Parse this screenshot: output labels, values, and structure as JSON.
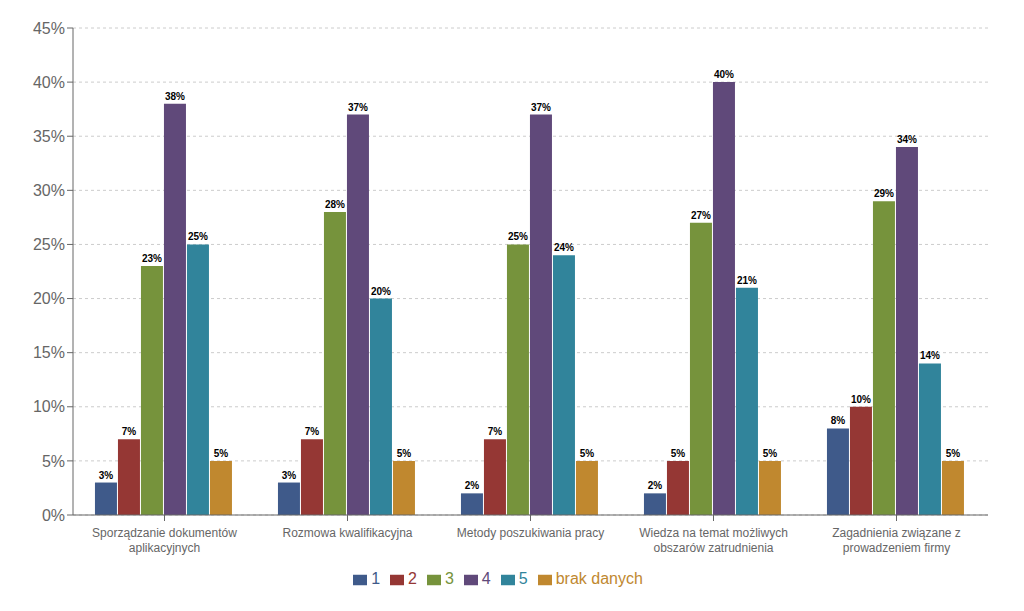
{
  "chart_data": {
    "type": "bar",
    "categories": [
      "Sporządzanie dokumentów\naplikacyjnych",
      "Rozmowa kwalifikacyjna",
      "Metody poszukiwania pracy",
      "Wiedza na temat możliwych\nobszarów zatrudnienia",
      "Zagadnienia związane z\nprowadzeniem firmy"
    ],
    "series": [
      {
        "name": "1",
        "color": "#3F5A8A",
        "values": [
          3,
          3,
          2,
          2,
          8
        ],
        "value_labels": [
          "3%",
          "3%",
          "2%",
          "2%",
          "8%"
        ]
      },
      {
        "name": "2",
        "color": "#953734",
        "values": [
          7,
          7,
          7,
          5,
          10
        ],
        "value_labels": [
          "7%",
          "7%",
          "7%",
          "5%",
          "10%"
        ]
      },
      {
        "name": "3",
        "color": "#76933C",
        "values": [
          23,
          28,
          25,
          27,
          29
        ],
        "value_labels": [
          "23%",
          "28%",
          "25%",
          "27%",
          "29%"
        ]
      },
      {
        "name": "4",
        "color": "#60497A",
        "values": [
          38,
          37,
          37,
          40,
          34
        ],
        "value_labels": [
          "38%",
          "37%",
          "37%",
          "40%",
          "34%"
        ]
      },
      {
        "name": "5",
        "color": "#31849B",
        "values": [
          25,
          20,
          24,
          21,
          14
        ],
        "value_labels": [
          "25%",
          "20%",
          "24%",
          "21%",
          "14%"
        ]
      },
      {
        "name": "brak danych",
        "color": "#C0882F",
        "values": [
          5,
          5,
          5,
          5,
          5
        ],
        "value_labels": [
          "5%",
          "5%",
          "5%",
          "5%",
          "5%"
        ]
      }
    ],
    "ylim": [
      0,
      45
    ],
    "yticks": [
      {
        "value": 0,
        "label": "0%"
      },
      {
        "value": 5,
        "label": "5%"
      },
      {
        "value": 10,
        "label": "10%"
      },
      {
        "value": 15,
        "label": "15%"
      },
      {
        "value": 20,
        "label": "20%"
      },
      {
        "value": 25,
        "label": "25%"
      },
      {
        "value": 30,
        "label": "30%"
      },
      {
        "value": 35,
        "label": "35%"
      },
      {
        "value": 40,
        "label": "40%"
      },
      {
        "value": 45,
        "label": "45%"
      }
    ],
    "grid": true,
    "legend": "bottom",
    "data_labels": true
  }
}
